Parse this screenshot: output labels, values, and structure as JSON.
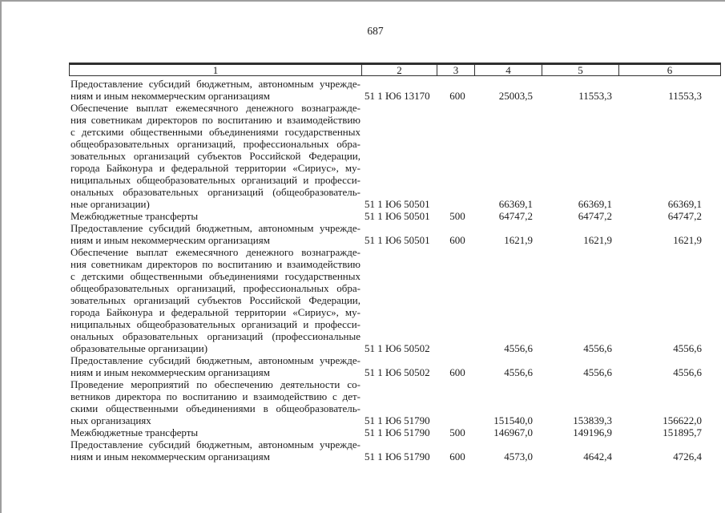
{
  "page": {
    "number": "687"
  },
  "table": {
    "header": [
      "1",
      "2",
      "3",
      "4",
      "5",
      "6"
    ],
    "rows": [
      {
        "name_lines": [
          "Предоставление субсидий бюджетным, автономным учрежде-",
          "ниям и иным некоммерческим организациям"
        ],
        "code": "51 1 Ю6 13170",
        "expense_type": "600",
        "amounts": [
          "25003,5",
          "11553,3",
          "11553,3"
        ]
      },
      {
        "name_lines": [
          "Обеспечение выплат ежемесячного денежного вознагражде-",
          "ния советникам директоров по воспитанию и взаимодействию",
          "с детскими общественными объединениями государственных",
          "общеобразовательных организаций, профессиональных обра-",
          "зовательных организаций субъектов Российской Федерации,",
          "города Байконура и федеральной территории «Сириус», му-",
          "ниципальных общеобразовательных организаций и професси-",
          "ональных образовательных организаций (общеобразователь-",
          "ные организации)"
        ],
        "code": "51 1 Ю6 50501",
        "expense_type": "",
        "amounts": [
          "66369,1",
          "66369,1",
          "66369,1"
        ]
      },
      {
        "name_lines": [
          "Межбюджетные трансферты"
        ],
        "code": "51 1 Ю6 50501",
        "expense_type": "500",
        "amounts": [
          "64747,2",
          "64747,2",
          "64747,2"
        ]
      },
      {
        "name_lines": [
          "Предоставление субсидий бюджетным, автономным учрежде-",
          "ниям и иным некоммерческим организациям"
        ],
        "code": "51 1 Ю6 50501",
        "expense_type": "600",
        "amounts": [
          "1621,9",
          "1621,9",
          "1621,9"
        ]
      },
      {
        "name_lines": [
          "Обеспечение выплат ежемесячного денежного вознагражде-",
          "ния советникам директоров по воспитанию и взаимодействию",
          "с детскими общественными объединениями государственных",
          "общеобразовательных организаций, профессиональных обра-",
          "зовательных организаций субъектов Российской Федерации,",
          "города Байконура и федеральной территории «Сириус», му-",
          "ниципальных общеобразовательных организаций и професси-",
          "ональных образовательных организаций (профессиональные",
          "образовательные организации)"
        ],
        "code": "51 1 Ю6 50502",
        "expense_type": "",
        "amounts": [
          "4556,6",
          "4556,6",
          "4556,6"
        ]
      },
      {
        "name_lines": [
          "Предоставление субсидий бюджетным, автономным учрежде-",
          "ниям и иным некоммерческим организациям"
        ],
        "code": "51 1 Ю6 50502",
        "expense_type": "600",
        "amounts": [
          "4556,6",
          "4556,6",
          "4556,6"
        ]
      },
      {
        "name_lines": [
          "Проведение мероприятий по обеспечению деятельности со-",
          "ветников директора по воспитанию и взаимодействию с дет-",
          "скими общественными объединениями в общеобразователь-",
          "ных организациях"
        ],
        "code": "51 1 Ю6 51790",
        "expense_type": "",
        "amounts": [
          "151540,0",
          "153839,3",
          "156622,0"
        ]
      },
      {
        "name_lines": [
          "Межбюджетные трансферты"
        ],
        "code": "51 1 Ю6 51790",
        "expense_type": "500",
        "amounts": [
          "146967,0",
          "149196,9",
          "151895,7"
        ]
      },
      {
        "name_lines": [
          "Предоставление субсидий бюджетным, автономным учрежде-",
          "ниям и иным некоммерческим организациям"
        ],
        "code": "51 1 Ю6 51790",
        "expense_type": "600",
        "amounts": [
          "4573,0",
          "4642,4",
          "4726,4"
        ]
      }
    ]
  }
}
